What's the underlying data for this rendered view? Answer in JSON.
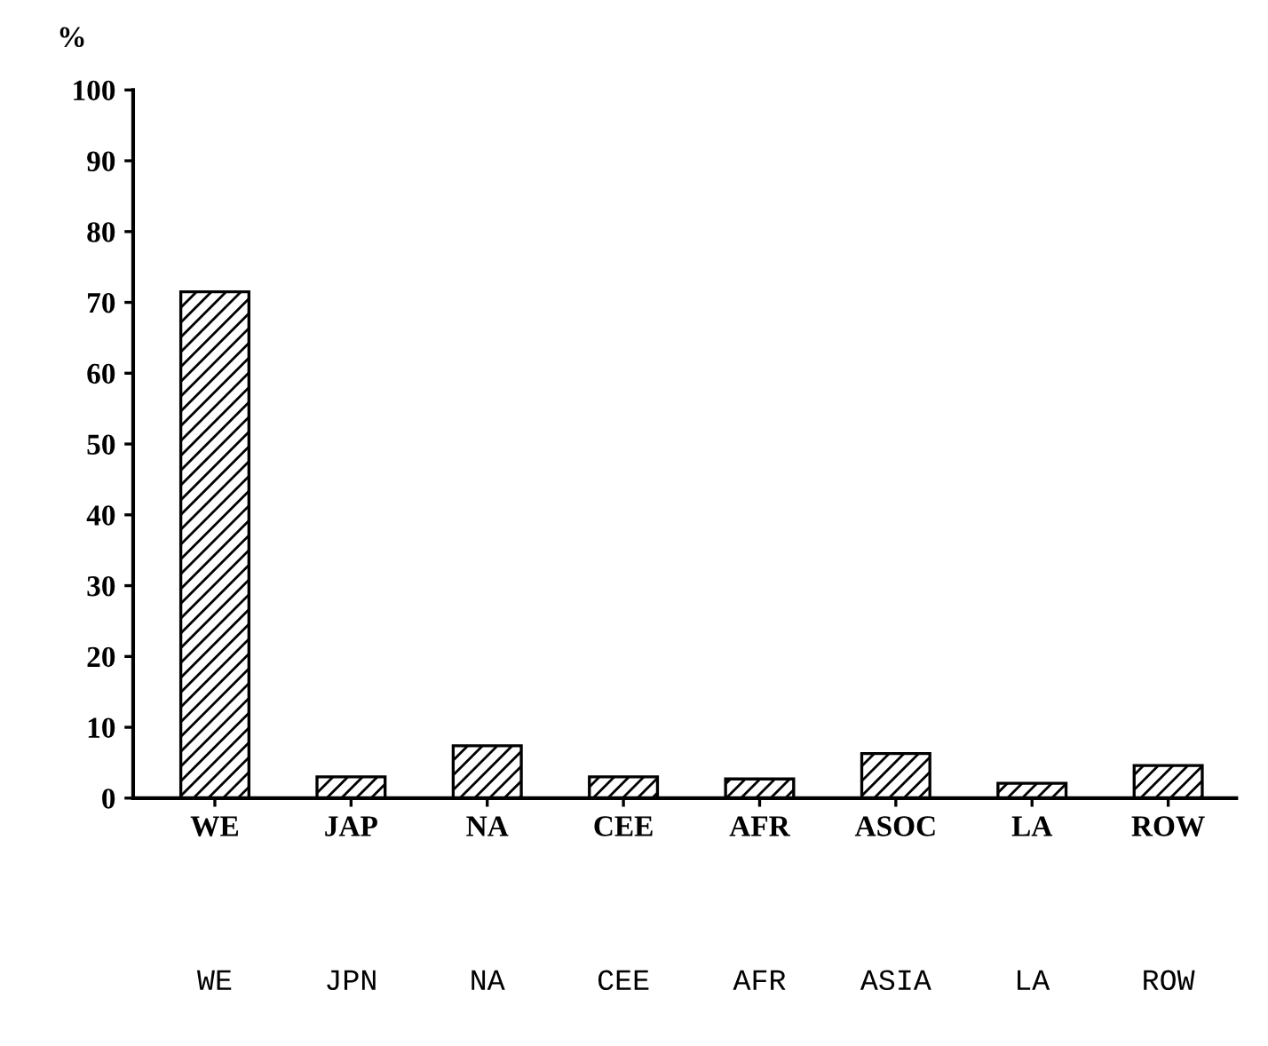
{
  "chart_data": {
    "type": "bar",
    "ylabel": "%",
    "categories": [
      "WE",
      "JAP",
      "NA",
      "CEE",
      "AFR",
      "ASOC",
      "LA",
      "ROW"
    ],
    "values": [
      71.5,
      3.0,
      7.4,
      3.0,
      2.7,
      6.3,
      2.1,
      4.6
    ],
    "color": "#000000",
    "ylim": [
      0,
      100
    ],
    "yticks": [
      0,
      10,
      20,
      30,
      40,
      50,
      60,
      70,
      80,
      90,
      100
    ],
    "grid": false,
    "annotations": [
      "WE",
      "JPN",
      "NA",
      "CEE",
      "AFR",
      "ASIA",
      "LA",
      "ROW"
    ]
  }
}
